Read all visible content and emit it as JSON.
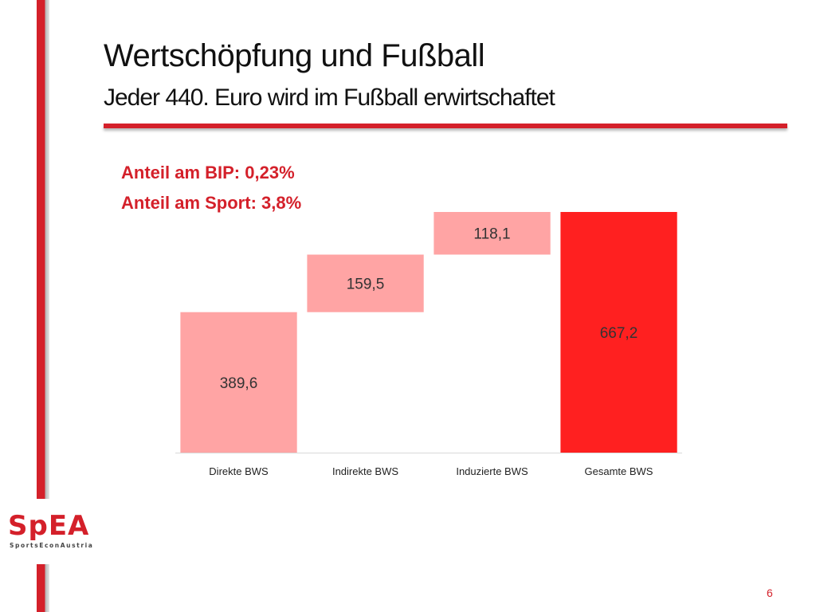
{
  "slide": {
    "title": "Wertschöpfung und Fußball",
    "subtitle": "Jeder 440. Euro wird im Fußball erwirtschaftet",
    "notes": [
      "Anteil am BIP: 0,23%",
      "Anteil am Sport: 3,8%"
    ],
    "page_number": "6"
  },
  "logo": {
    "text": "SpEA",
    "tagline": "SportsEconAustria"
  },
  "colors": {
    "accent": "#d4202a",
    "bar_light": "#ffa4a4",
    "bar_total": "#ff2020"
  },
  "chart_data": {
    "type": "bar",
    "subtype": "waterfall",
    "categories": [
      "Direkte BWS",
      "Indirekte BWS",
      "Induzierte BWS",
      "Gesamte BWS"
    ],
    "values": [
      389.6,
      159.5,
      118.1,
      667.2
    ],
    "value_labels": [
      "389,6",
      "159,5",
      "118,1",
      "667,2"
    ],
    "is_total": [
      false,
      false,
      false,
      true
    ],
    "ylim": [
      0,
      667.2
    ],
    "grid": false,
    "legend": "none",
    "title": "",
    "xlabel": "",
    "ylabel": ""
  }
}
